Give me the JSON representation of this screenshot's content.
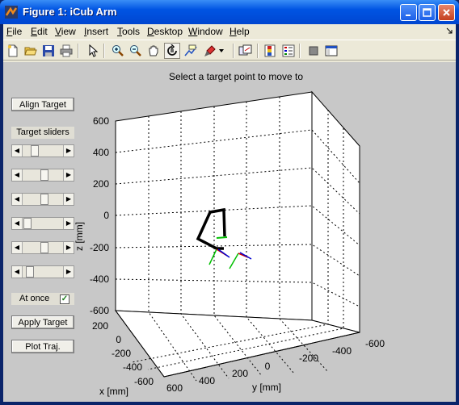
{
  "window": {
    "title": "Figure 1: iCub Arm"
  },
  "menu": [
    "File",
    "Edit",
    "View",
    "Insert",
    "Tools",
    "Desktop",
    "Window",
    "Help"
  ],
  "menu_underline": [
    "F",
    "E",
    "V",
    "I",
    "T",
    "D",
    "W",
    "H"
  ],
  "toolbar_icons": [
    "new-figure-icon",
    "open-icon",
    "save-icon",
    "print-icon",
    "pointer-icon",
    "zoom-in-icon",
    "zoom-out-icon",
    "pan-hand-icon",
    "rotate-3d-icon",
    "data-cursor-icon",
    "brush-icon",
    "link-plot-icon",
    "colorbar-icon",
    "legend-icon",
    "hide-plot-tools-icon",
    "show-plot-tools-icon"
  ],
  "panel": {
    "align_target": "Align Target",
    "target_sliders": "Target sliders",
    "sliders": [
      0.25,
      0.55,
      0.55,
      0.05,
      0.55,
      0.12
    ],
    "at_once": "At once",
    "at_once_checked": true,
    "apply_target": "Apply Target",
    "plot_traj": "Plot Traj."
  },
  "chart_data": {
    "type": "3d-line",
    "title": "Select a target point to move to",
    "xlabel": "x [mm]",
    "ylabel": "y [mm]",
    "zlabel": "z [mm]",
    "z_ticks": [
      "600",
      "400",
      "200",
      "0",
      "-200",
      "-400",
      "-600"
    ],
    "x_ticks": [
      "200",
      "0",
      "-200",
      "-400",
      "-600"
    ],
    "y_ticks": [
      "600",
      "400",
      "200",
      "0",
      "-200",
      "-400",
      "-600"
    ],
    "xlim": [
      -600,
      200
    ],
    "ylim": [
      -600,
      600
    ],
    "zlim": [
      -600,
      600
    ],
    "grid": true
  }
}
